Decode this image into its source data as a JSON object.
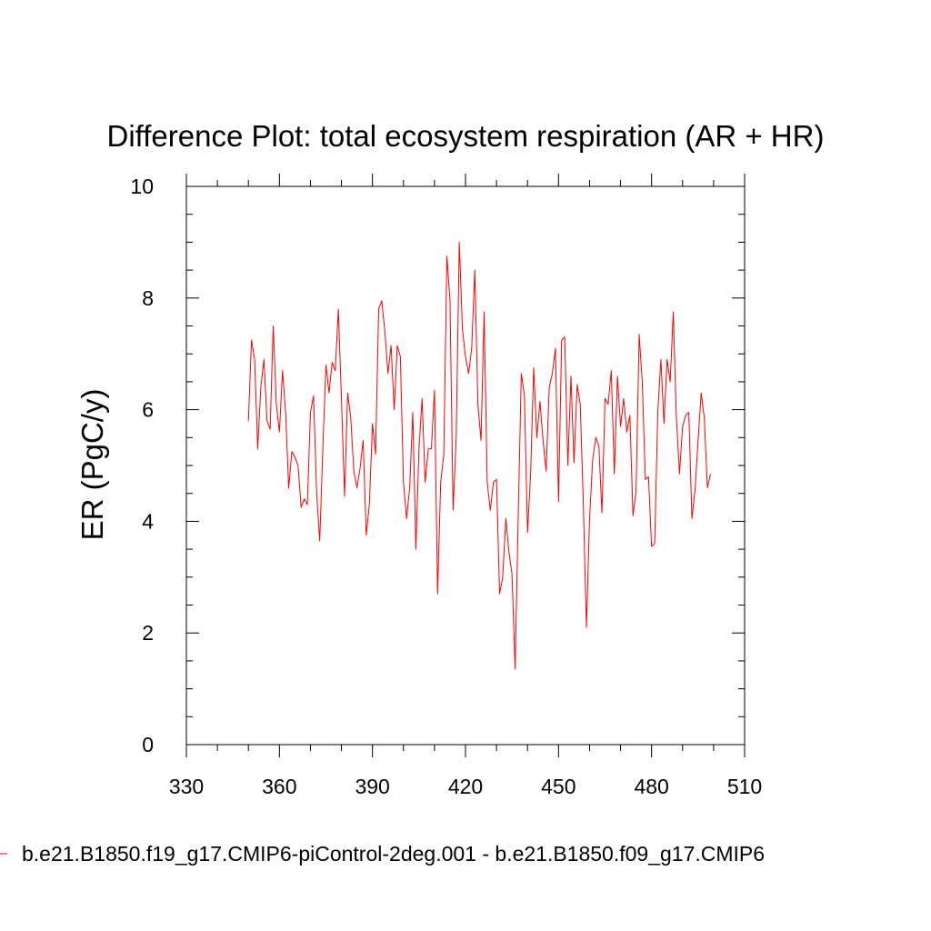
{
  "chart_data": {
    "type": "line",
    "title": "Difference Plot: total ecosystem respiration (AR + HR)",
    "xlabel": "",
    "ylabel": "ER  (PgC/y)",
    "xlim": [
      330,
      510
    ],
    "ylim": [
      0,
      10
    ],
    "xticks": [
      330,
      360,
      390,
      420,
      450,
      480,
      510
    ],
    "yticks": [
      0,
      2,
      4,
      6,
      8,
      10
    ],
    "grid": false,
    "legend_position": "bottom",
    "series": [
      {
        "name": "b.e21.B1850.f19_g17.CMIP6-piControl-2deg.001 - b.e21.B1850.f09_g17.CMIP6",
        "color": "#ff0000",
        "x": [
          350,
          351,
          352,
          353,
          354,
          355,
          356,
          357,
          358,
          359,
          360,
          361,
          362,
          363,
          364,
          365,
          366,
          367,
          368,
          369,
          370,
          371,
          372,
          373,
          374,
          375,
          376,
          377,
          378,
          379,
          380,
          381,
          382,
          383,
          384,
          385,
          386,
          387,
          388,
          389,
          390,
          391,
          392,
          393,
          394,
          395,
          396,
          397,
          398,
          399,
          400,
          401,
          402,
          403,
          404,
          405,
          406,
          407,
          408,
          409,
          410,
          411,
          412,
          413,
          414,
          415,
          416,
          417,
          418,
          419,
          420,
          421,
          422,
          423,
          424,
          425,
          426,
          427,
          428,
          429,
          430,
          431,
          432,
          433,
          434,
          435,
          436,
          437,
          438,
          439,
          440,
          441,
          442,
          443,
          444,
          445,
          446,
          447,
          448,
          449,
          450,
          451,
          452,
          453,
          454,
          455,
          456,
          457,
          458,
          459,
          460,
          461,
          462,
          463,
          464,
          465,
          466,
          467,
          468,
          469,
          470,
          471,
          472,
          473,
          474,
          475,
          476,
          477,
          478,
          479,
          480,
          481,
          482,
          483,
          484,
          485,
          486,
          487,
          488,
          489,
          490,
          491,
          492,
          493,
          494,
          495,
          496,
          497,
          498,
          499
        ],
        "values": [
          5.8,
          7.25,
          6.9,
          5.3,
          6.4,
          6.9,
          5.8,
          5.65,
          7.5,
          6.1,
          5.6,
          6.7,
          5.95,
          4.6,
          5.25,
          5.15,
          5.0,
          4.25,
          4.4,
          4.3,
          5.95,
          6.25,
          4.5,
          3.65,
          5.3,
          6.8,
          6.3,
          6.85,
          6.7,
          7.8,
          6.2,
          4.45,
          6.3,
          5.85,
          4.9,
          4.6,
          4.95,
          5.45,
          3.75,
          4.3,
          5.75,
          5.2,
          7.8,
          7.95,
          7.4,
          6.65,
          7.15,
          6.0,
          7.15,
          6.95,
          4.7,
          4.05,
          4.6,
          5.95,
          3.5,
          5.3,
          6.2,
          4.7,
          5.3,
          5.3,
          6.35,
          2.7,
          4.7,
          5.2,
          8.75,
          7.95,
          4.2,
          5.5,
          9.0,
          7.45,
          6.95,
          6.65,
          7.1,
          8.5,
          6.1,
          5.45,
          7.75,
          4.7,
          4.2,
          4.7,
          4.75,
          2.7,
          3.0,
          4.05,
          3.45,
          3.05,
          1.35,
          4.1,
          6.65,
          6.25,
          3.8,
          4.85,
          6.75,
          5.5,
          6.15,
          5.45,
          4.9,
          6.4,
          6.65,
          7.1,
          4.35,
          7.25,
          7.3,
          5.0,
          6.6,
          5.05,
          6.45,
          6.1,
          4.3,
          2.1,
          4.05,
          5.1,
          5.5,
          5.35,
          4.15,
          6.2,
          6.1,
          6.7,
          4.85,
          6.6,
          5.7,
          6.2,
          5.6,
          5.9,
          4.1,
          4.55,
          7.35,
          6.5,
          4.75,
          4.8,
          3.55,
          3.6,
          5.95,
          6.9,
          5.75,
          6.9,
          6.5,
          7.75,
          5.85,
          4.85,
          5.7,
          5.9,
          5.95,
          4.05,
          4.55,
          5.45,
          6.3,
          5.85,
          4.6,
          4.85
        ]
      }
    ]
  }
}
